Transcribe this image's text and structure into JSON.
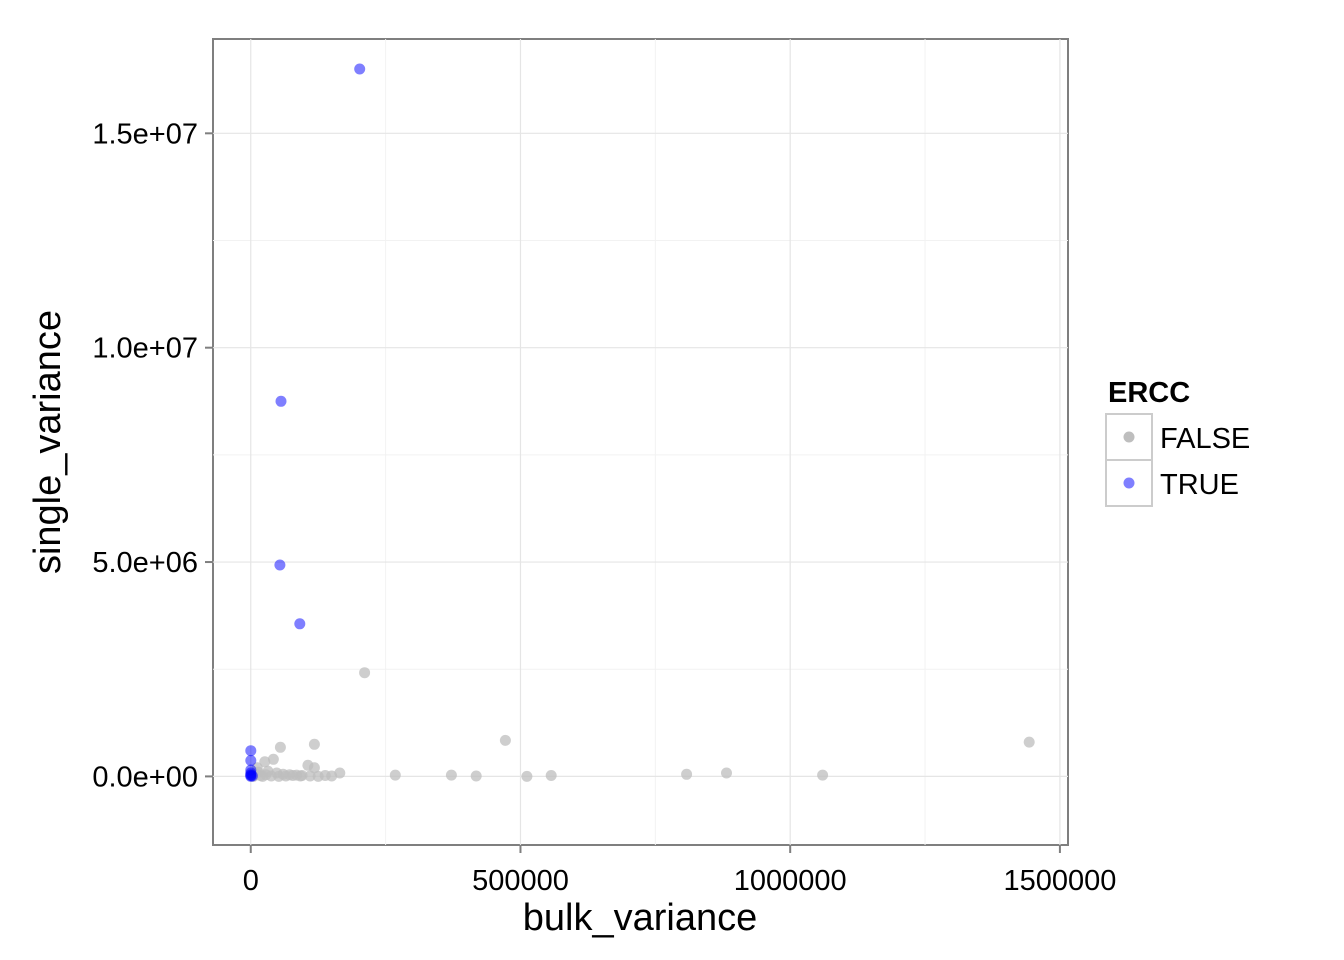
{
  "chart_data": {
    "type": "scatter",
    "xlabel": "bulk_variance",
    "ylabel": "single_variance",
    "xlim": [
      -70000,
      1515000
    ],
    "ylim": [
      -1600000,
      17200000
    ],
    "x_ticks": [
      0,
      500000,
      1000000,
      1500000
    ],
    "x_tick_labels": [
      "0",
      "500000",
      "1000000",
      "1500000"
    ],
    "x_minor": [
      250000,
      750000,
      1250000
    ],
    "y_ticks": [
      0,
      5000000,
      10000000,
      15000000
    ],
    "y_tick_labels": [
      "0.0e+00",
      "5.0e+06",
      "1.0e+07",
      "1.5e+07"
    ],
    "y_minor": [
      2500000,
      7500000,
      12500000
    ],
    "grid": true,
    "legend": {
      "title": "ERCC",
      "position": "right",
      "entries": [
        {
          "label": "FALSE",
          "color": "#bebebe"
        },
        {
          "label": "TRUE",
          "color": "#0000ff"
        }
      ]
    },
    "series": [
      {
        "name": "FALSE",
        "color": "#bebebe",
        "points": [
          [
            211000,
            2420000
          ],
          [
            472000,
            840000
          ],
          [
            1443000,
            800000
          ],
          [
            55000,
            680000
          ],
          [
            118000,
            750000
          ],
          [
            882000,
            80000
          ],
          [
            808000,
            50000
          ],
          [
            1060000,
            30000
          ],
          [
            268000,
            30000
          ],
          [
            372000,
            30000
          ],
          [
            418000,
            10000
          ],
          [
            512000,
            0
          ],
          [
            557000,
            20000
          ],
          [
            165000,
            80000
          ],
          [
            106000,
            260000
          ],
          [
            118000,
            200000
          ],
          [
            42000,
            400000
          ],
          [
            26000,
            340000
          ],
          [
            12000,
            200000
          ],
          [
            32000,
            120000
          ],
          [
            48000,
            80000
          ],
          [
            60000,
            50000
          ],
          [
            72000,
            40000
          ],
          [
            85000,
            30000
          ],
          [
            95000,
            20000
          ],
          [
            110000,
            10000
          ],
          [
            125000,
            0
          ],
          [
            138000,
            20000
          ],
          [
            150000,
            10000
          ],
          [
            8000,
            60000
          ],
          [
            18000,
            20000
          ],
          [
            28000,
            40000
          ],
          [
            38000,
            10000
          ],
          [
            52000,
            0
          ],
          [
            65000,
            10000
          ],
          [
            78000,
            20000
          ],
          [
            92000,
            10000
          ],
          [
            5000,
            0
          ],
          [
            14000,
            100000
          ],
          [
            22000,
            0
          ]
        ]
      },
      {
        "name": "TRUE",
        "color": "#0000ff",
        "points": [
          [
            202000,
            16500000
          ],
          [
            56000,
            8750000
          ],
          [
            54000,
            4930000
          ],
          [
            91000,
            3560000
          ],
          [
            0,
            600000
          ],
          [
            0,
            370000
          ],
          [
            0,
            150000
          ],
          [
            0,
            80000
          ],
          [
            0,
            40000
          ],
          [
            0,
            20000
          ],
          [
            0,
            0
          ],
          [
            3000,
            10000
          ]
        ]
      }
    ]
  }
}
